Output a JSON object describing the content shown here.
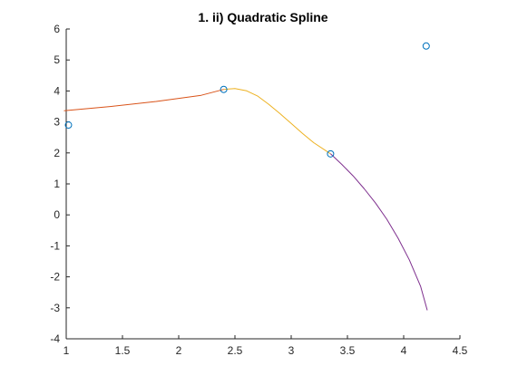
{
  "chart_data": {
    "type": "line",
    "title": "1. ii) Quadratic Spline",
    "xlabel": "",
    "ylabel": "",
    "xlim": [
      1,
      4.5
    ],
    "ylim": [
      -4,
      6
    ],
    "xticks": [
      1,
      1.5,
      2,
      2.5,
      3,
      3.5,
      4,
      4.5
    ],
    "xtick_labels": [
      "1",
      "1.5",
      "2",
      "2.5",
      "3",
      "3.5",
      "4",
      "4.5"
    ],
    "yticks": [
      -4,
      -3,
      -2,
      -1,
      0,
      1,
      2,
      3,
      4,
      5,
      6
    ],
    "ytick_labels": [
      "-4",
      "-3",
      "-2",
      "-1",
      "0",
      "1",
      "2",
      "3",
      "4",
      "5",
      "6"
    ],
    "grid": false,
    "legend": "none",
    "colors": {
      "axes": "#262626",
      "points": "#0072BD",
      "series": [
        "#D95319",
        "#EDB120",
        "#7E2F8E"
      ]
    },
    "points": {
      "x": [
        1.02,
        2.4,
        3.35,
        4.2
      ],
      "y": [
        2.9,
        4.05,
        1.97,
        5.45
      ]
    },
    "series": [
      {
        "x": [
          0.98,
          1.4,
          1.8,
          2.2,
          2.4
        ],
        "y": [
          3.36,
          3.5,
          3.66,
          3.86,
          4.05
        ]
      },
      {
        "x": [
          2.4,
          2.5,
          2.6,
          2.7,
          2.8,
          2.9,
          3.0,
          3.1,
          3.2,
          3.35
        ],
        "y": [
          4.05,
          4.08,
          4.01,
          3.84,
          3.57,
          3.27,
          2.95,
          2.63,
          2.33,
          1.97
        ]
      },
      {
        "x": [
          3.35,
          3.45,
          3.55,
          3.65,
          3.75,
          3.85,
          3.95,
          4.05,
          4.15,
          4.21
        ],
        "y": [
          1.97,
          1.63,
          1.26,
          0.84,
          0.38,
          -0.14,
          -0.75,
          -1.45,
          -2.3,
          -3.08
        ]
      }
    ]
  }
}
